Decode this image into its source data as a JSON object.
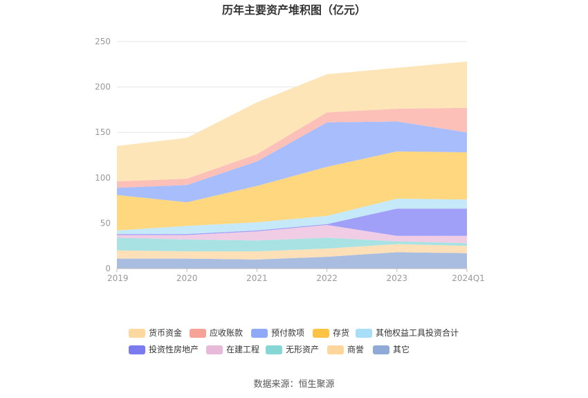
{
  "chart_data": {
    "type": "area",
    "stacked": true,
    "title": "历年主要资产堆积图（亿元）",
    "xlabel": "",
    "ylabel": "",
    "categories": [
      "2019",
      "2020",
      "2021",
      "2022",
      "2023",
      "2024Q1"
    ],
    "ylim": [
      0,
      250
    ],
    "yticks": [
      0,
      50,
      100,
      150,
      200,
      250
    ],
    "grid": true,
    "legend_position": "bottom",
    "series": [
      {
        "name": "其它",
        "color": "#a9bde0",
        "values": [
          11,
          11,
          10,
          13,
          18,
          17
        ]
      },
      {
        "name": "商誉",
        "color": "#fde0b8",
        "values": [
          9,
          8,
          9,
          9,
          9,
          8
        ]
      },
      {
        "name": "无形资产",
        "color": "#a8e2e2",
        "values": [
          14,
          13,
          12,
          12,
          3,
          3
        ]
      },
      {
        "name": "在建工程",
        "color": "#f0cde5",
        "values": [
          3,
          5,
          10,
          14,
          6,
          8
        ]
      },
      {
        "name": "投资性房地产",
        "color": "#a0a0f8",
        "values": [
          1,
          1,
          1,
          1,
          30,
          30
        ]
      },
      {
        "name": "其他权益工具投资合计",
        "color": "#c5e9f8",
        "values": [
          4,
          9,
          9,
          9,
          11,
          10
        ]
      },
      {
        "name": "存货",
        "color": "#ffd77e",
        "values": [
          39,
          26,
          40,
          54,
          52,
          52
        ]
      },
      {
        "name": "预付款项",
        "color": "#a8bdfc",
        "values": [
          8,
          19,
          27,
          49,
          33,
          22
        ]
      },
      {
        "name": "应收账款",
        "color": "#fcc0b8",
        "values": [
          7,
          7,
          8,
          11,
          14,
          27
        ]
      },
      {
        "name": "货币资金",
        "color": "#fee5b8",
        "values": [
          39,
          45,
          57,
          42,
          45,
          51
        ]
      }
    ],
    "legend": [
      {
        "name": "货币资金",
        "color": "#fdd9a0"
      },
      {
        "name": "应收账款",
        "color": "#f7a296"
      },
      {
        "name": "预付款项",
        "color": "#8ea9f7"
      },
      {
        "name": "存货",
        "color": "#fdc444"
      },
      {
        "name": "其他权益工具投资合计",
        "color": "#a8def7"
      },
      {
        "name": "投资性房地产",
        "color": "#7b7bef"
      },
      {
        "name": "在建工程",
        "color": "#e8bada"
      },
      {
        "name": "无形资产",
        "color": "#86d6d6"
      },
      {
        "name": "商誉",
        "color": "#fed69c"
      },
      {
        "name": "其它",
        "color": "#90aad8"
      }
    ]
  },
  "source": "数据来源：恒生聚源"
}
